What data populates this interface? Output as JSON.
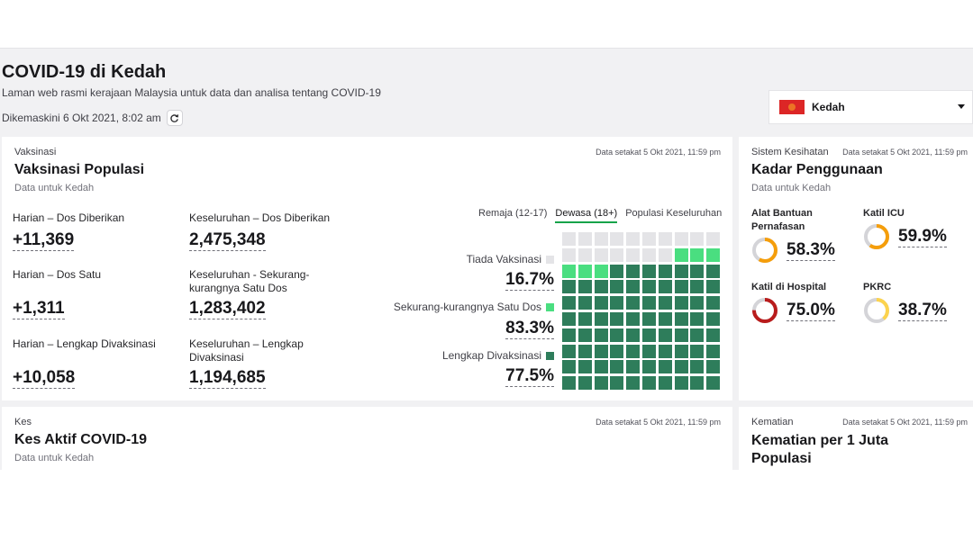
{
  "header": {
    "title": "COVID-19 di Kedah",
    "description": "Laman web rasmi kerajaan Malaysia untuk data dan analisa tentang COVID-19",
    "updated": "Dikemaskini 6 Okt 2021, 8:02 am"
  },
  "state_selector": {
    "selected": "Kedah",
    "flag_color": "#dc2626"
  },
  "vaccination": {
    "category": "Vaksinasi",
    "title": "Vaksinasi Populasi",
    "subtitle": "Data untuk Kedah",
    "timestamp": "Data setakat 5 Okt 2021, 11:59 pm",
    "stats": {
      "daily_doses": {
        "label": "Harian – Dos Diberikan",
        "value": "+11,369"
      },
      "total_doses": {
        "label": "Keseluruhan – Dos Diberikan",
        "value": "2,475,348"
      },
      "daily_first": {
        "label": "Harian – Dos Satu",
        "value": "+1,311"
      },
      "total_first": {
        "label": "Keseluruhan - Sekurang-kurangnya Satu Dos",
        "value": "1,283,402"
      },
      "daily_full": {
        "label": "Harian – Lengkap Divaksinasi",
        "value": "+10,058"
      },
      "total_full": {
        "label": "Keseluruhan – Lengkap Divaksinasi",
        "value": "1,194,685"
      }
    },
    "tabs": [
      "Remaja (12-17)",
      "Dewasa (18+)",
      "Populasi Keseluruhan"
    ],
    "active_tab": 1,
    "waffle": {
      "unvaccinated": {
        "label": "Tiada Vaksinasi",
        "value": "16.7%",
        "color": "#e4e4e7"
      },
      "partial": {
        "label": "Sekurang-kurangnya Satu Dos",
        "value": "83.3%",
        "color": "#4ade80"
      },
      "full": {
        "label": "Lengkap Divaksinasi",
        "value": "77.5%",
        "color": "#2e7d5b"
      },
      "cells_unvaccinated": 17,
      "cells_partial_only": 6,
      "cells_full": 77
    }
  },
  "health": {
    "category": "Sistem Kesihatan",
    "title": "Kadar Penggunaan",
    "subtitle": "Data untuk Kedah",
    "timestamp": "Data setakat 5 Okt 2021, 11:59 pm",
    "items": [
      {
        "label": "Alat Bantuan Pernafasan",
        "value": "58.3%",
        "fraction": 0.583,
        "color": "#f59e0b"
      },
      {
        "label": "Katil ICU",
        "value": "59.9%",
        "fraction": 0.599,
        "color": "#f59e0b"
      },
      {
        "label": "Katil di Hospital",
        "value": "75.0%",
        "fraction": 0.75,
        "color": "#b91c1c"
      },
      {
        "label": "PKRC",
        "value": "38.7%",
        "fraction": 0.387,
        "color": "#fcd34d"
      }
    ]
  },
  "cases": {
    "category": "Kes",
    "title": "Kes Aktif COVID-19",
    "subtitle": "Data untuk Kedah",
    "timestamp": "Data setakat 5 Okt 2021, 11:59 pm"
  },
  "deaths": {
    "category": "Kematian",
    "title": "Kematian per 1 Juta Populasi",
    "timestamp": "Data setakat 5 Okt 2021, 11:59 pm"
  }
}
